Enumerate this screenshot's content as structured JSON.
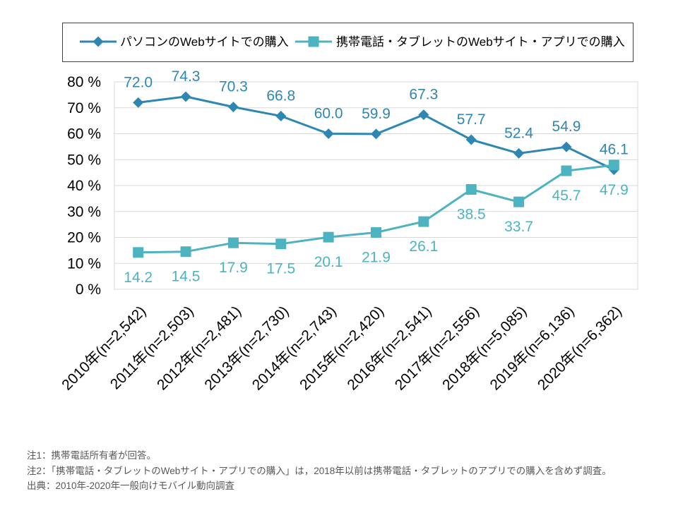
{
  "chart_data": {
    "type": "line",
    "categories": [
      "2010年(n=2,542)",
      "2011年(n=2,503)",
      "2012年(n=2,481)",
      "2013年(n=2,730)",
      "2014年(n=2,743)",
      "2015年(n=2,420)",
      "2016年(n=2,541)",
      "2017年(n=2,556)",
      "2018年(n=5,085)",
      "2019年(n=6,136)",
      "2020年(n=6,362)"
    ],
    "series": [
      {
        "name": "パソコンのWebサイトでの購入",
        "values": [
          72.0,
          74.3,
          70.3,
          66.8,
          60.0,
          59.9,
          67.3,
          57.7,
          52.4,
          54.9,
          46.1
        ],
        "color": "#2E86B3",
        "marker": "diamond"
      },
      {
        "name": "携帯電話・タブレットのWebサイト・アプリでの購入",
        "values": [
          14.2,
          14.5,
          17.9,
          17.5,
          20.1,
          21.9,
          26.1,
          38.5,
          33.7,
          45.7,
          47.9
        ],
        "color": "#4DB3C1",
        "marker": "square"
      }
    ],
    "ylim": [
      0,
      80
    ],
    "y_ticks": [
      0,
      10,
      20,
      30,
      40,
      50,
      60,
      70,
      80
    ],
    "y_tick_labels": [
      "0 %",
      "10 %",
      "20 %",
      "30 %",
      "40 %",
      "50 %",
      "60 %",
      "70 %",
      "80 %"
    ],
    "grid": true,
    "legend": "top"
  },
  "notes": [
    "注1：携帯電話所有者が回答。",
    "注2：「携帯電話・タブレットのWebサイト・アプリでの購入」は，2018年以前は携帯電話・タブレットのアプリでの購入を含めず調査。",
    "出典：2010年-2020年一般向けモバイル動向調査"
  ]
}
